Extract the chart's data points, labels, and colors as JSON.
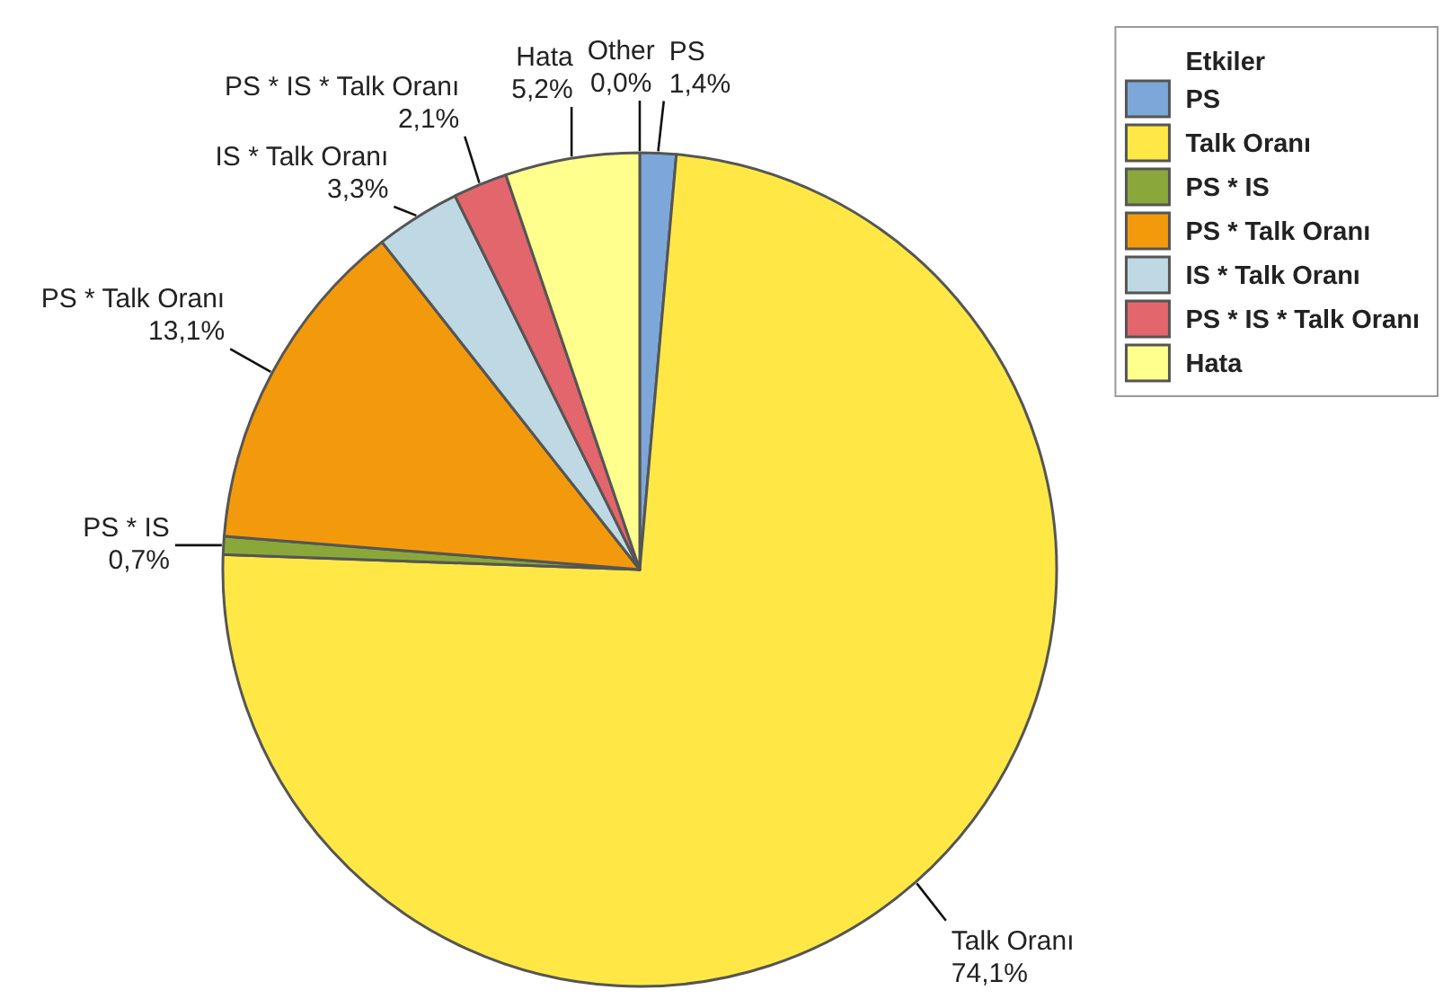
{
  "chart_data": {
    "type": "pie",
    "categories": [
      "PS",
      "Talk Oranı",
      "PS * IS",
      "PS * Talk Oranı",
      "IS * Talk Oranı",
      "PS * IS * Talk Oranı",
      "Hata",
      "Other"
    ],
    "values": [
      1.4,
      74.1,
      0.7,
      13.1,
      3.3,
      2.1,
      5.2,
      0.0
    ],
    "colors": [
      "#7da7d8",
      "#ffe845",
      "#8aa83a",
      "#f39a0c",
      "#bed9e4",
      "#e2666c",
      "#ffff8e",
      null
    ],
    "value_labels": [
      "1,4%",
      "74,1%",
      "0,7%",
      "13,1%",
      "3,3%",
      "2,1%",
      "5,2%",
      "0,0%"
    ],
    "legend_title": "Etkiler",
    "legend": "top right"
  }
}
